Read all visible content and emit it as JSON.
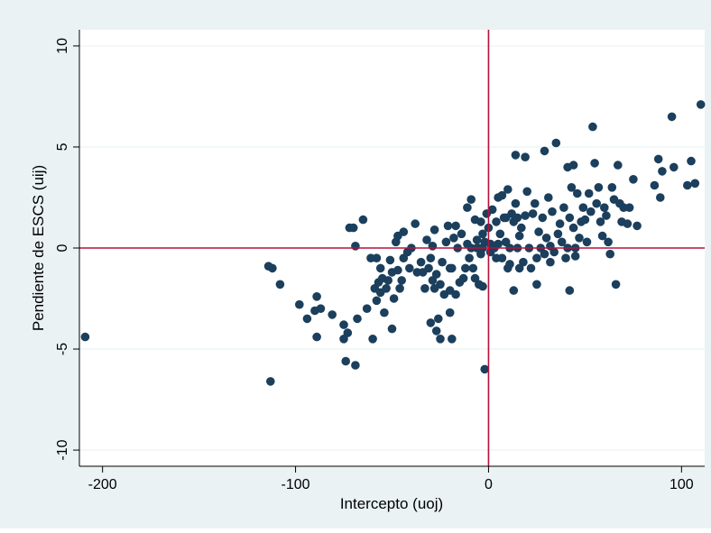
{
  "chart_data": {
    "type": "scatter",
    "title": "",
    "xlabel": "Intercepto (uoj)",
    "ylabel": "Pendiente de ESCS (uij)",
    "xlim": [
      -212,
      112
    ],
    "ylim": [
      -10.8,
      10.8
    ],
    "x_ticks": [
      -200,
      -100,
      0,
      100
    ],
    "y_ticks": [
      -10,
      -5,
      0,
      5,
      10
    ],
    "x_tick_labels": [
      "-200",
      "-100",
      "0",
      "100"
    ],
    "y_tick_labels": [
      "-10",
      "-5",
      "0",
      "5",
      "10"
    ],
    "grid": true,
    "reference_lines": {
      "x": 0,
      "y": 0
    },
    "colors": {
      "background": "#eaf2f3",
      "plot_area": "#ffffff",
      "points": "#1b3f5c",
      "reference_lines": "#b5123b",
      "grid": "#eaf2f3"
    },
    "points": [
      [
        -209,
        -4.4
      ],
      [
        -114,
        -0.9
      ],
      [
        -112,
        -1.0
      ],
      [
        -113,
        -6.6
      ],
      [
        -108,
        -1.8
      ],
      [
        -98,
        -2.8
      ],
      [
        -94,
        -3.5
      ],
      [
        -90,
        -3.1
      ],
      [
        -89,
        -2.4
      ],
      [
        -89,
        -4.4
      ],
      [
        -87,
        -3.0
      ],
      [
        -81,
        -3.3
      ],
      [
        -75,
        -4.5
      ],
      [
        -75,
        -3.8
      ],
      [
        -74,
        -5.6
      ],
      [
        -73,
        -4.2
      ],
      [
        -72,
        1.0
      ],
      [
        -70,
        1.0
      ],
      [
        -69,
        -5.8
      ],
      [
        -69,
        0.1
      ],
      [
        -68,
        -3.5
      ],
      [
        -65,
        1.4
      ],
      [
        -63,
        -3.0
      ],
      [
        -61,
        -0.5
      ],
      [
        -60,
        -4.5
      ],
      [
        -59,
        -2.0
      ],
      [
        -58,
        -0.5
      ],
      [
        -58,
        -2.6
      ],
      [
        -57,
        -1.7
      ],
      [
        -56,
        -2.2
      ],
      [
        -56,
        -1.0
      ],
      [
        -55,
        -1.5
      ],
      [
        -54,
        -3.2
      ],
      [
        -53,
        -2.0
      ],
      [
        -52,
        -1.6
      ],
      [
        -51,
        -0.6
      ],
      [
        -50,
        -1.2
      ],
      [
        -50,
        -4.0
      ],
      [
        -49,
        -2.5
      ],
      [
        -48,
        0.3
      ],
      [
        -47,
        -1.1
      ],
      [
        -47,
        0.6
      ],
      [
        -46,
        -2.0
      ],
      [
        -45,
        -1.6
      ],
      [
        -44,
        0.8
      ],
      [
        -44,
        -0.5
      ],
      [
        -42,
        -0.2
      ],
      [
        -41,
        -1.0
      ],
      [
        -40,
        0.0
      ],
      [
        -38,
        1.2
      ],
      [
        -37,
        -1.2
      ],
      [
        -35,
        -0.7
      ],
      [
        -34,
        -1.2
      ],
      [
        -33,
        -2.0
      ],
      [
        -32,
        0.4
      ],
      [
        -31,
        -1.0
      ],
      [
        -30,
        -3.7
      ],
      [
        -30,
        -0.5
      ],
      [
        -29,
        -1.6
      ],
      [
        -29,
        0.1
      ],
      [
        -28,
        -2.0
      ],
      [
        -28,
        0.9
      ],
      [
        -27,
        -4.1
      ],
      [
        -27,
        -1.3
      ],
      [
        -26,
        -3.5
      ],
      [
        -25,
        -1.8
      ],
      [
        -25,
        -4.5
      ],
      [
        -24,
        -0.7
      ],
      [
        -23,
        -2.3
      ],
      [
        -22,
        0.3
      ],
      [
        -21,
        1.1
      ],
      [
        -20,
        -1.0
      ],
      [
        -20,
        -3.2
      ],
      [
        -20,
        -2.1
      ],
      [
        -19,
        -4.5
      ],
      [
        -19,
        -1.0
      ],
      [
        -18,
        0.5
      ],
      [
        -17,
        1.1
      ],
      [
        -17,
        -2.3
      ],
      [
        -16,
        0.0
      ],
      [
        -15,
        -1.7
      ],
      [
        -14,
        0.7
      ],
      [
        -13,
        -1.5
      ],
      [
        -12,
        -1.0
      ],
      [
        -11,
        0.2
      ],
      [
        -11,
        2.0
      ],
      [
        -10,
        -0.5
      ],
      [
        -9,
        2.4
      ],
      [
        -9,
        0.0
      ],
      [
        -8,
        -1.0
      ],
      [
        -7,
        -1.5
      ],
      [
        -7,
        1.4
      ],
      [
        -6,
        0.0
      ],
      [
        -6,
        0.4
      ],
      [
        -5,
        0.0
      ],
      [
        -5,
        -1.8
      ],
      [
        -4,
        1.3
      ],
      [
        -4,
        -0.3
      ],
      [
        -3,
        0.0
      ],
      [
        -3,
        0.7
      ],
      [
        -3,
        -1.9
      ],
      [
        -2,
        -6.0
      ],
      [
        -2,
        0.3
      ],
      [
        -1,
        1.7
      ],
      [
        0,
        1.0
      ],
      [
        1,
        -0.2
      ],
      [
        1,
        0.2
      ],
      [
        2,
        1.9
      ],
      [
        3,
        0.0
      ],
      [
        4,
        -0.5
      ],
      [
        4,
        1.3
      ],
      [
        5,
        0.2
      ],
      [
        5,
        2.5
      ],
      [
        6,
        0.7
      ],
      [
        7,
        -0.5
      ],
      [
        7,
        2.6
      ],
      [
        8,
        1.5
      ],
      [
        9,
        0.3
      ],
      [
        9,
        1.5
      ],
      [
        10,
        -1.0
      ],
      [
        10,
        2.9
      ],
      [
        11,
        -0.8
      ],
      [
        11,
        0.0
      ],
      [
        12,
        1.7
      ],
      [
        13,
        1.3
      ],
      [
        13,
        -2.1
      ],
      [
        14,
        4.6
      ],
      [
        14,
        2.2
      ],
      [
        15,
        0.0
      ],
      [
        15,
        1.5
      ],
      [
        16,
        -1.0
      ],
      [
        16,
        0.6
      ],
      [
        17,
        1.0
      ],
      [
        18,
        -0.7
      ],
      [
        19,
        1.6
      ],
      [
        19,
        4.5
      ],
      [
        20,
        2.8
      ],
      [
        21,
        0.0
      ],
      [
        22,
        -1.0
      ],
      [
        23,
        1.7
      ],
      [
        24,
        2.2
      ],
      [
        25,
        -0.5
      ],
      [
        25,
        -1.8
      ],
      [
        26,
        0.8
      ],
      [
        27,
        0.0
      ],
      [
        28,
        1.5
      ],
      [
        29,
        -0.3
      ],
      [
        29,
        4.8
      ],
      [
        30,
        0.5
      ],
      [
        31,
        2.5
      ],
      [
        32,
        -0.7
      ],
      [
        32,
        0.1
      ],
      [
        33,
        1.8
      ],
      [
        34,
        -0.2
      ],
      [
        35,
        5.2
      ],
      [
        36,
        0.7
      ],
      [
        37,
        1.2
      ],
      [
        38,
        0.3
      ],
      [
        39,
        2.0
      ],
      [
        40,
        -0.5
      ],
      [
        41,
        4.0
      ],
      [
        41,
        0.0
      ],
      [
        42,
        -2.1
      ],
      [
        42,
        1.5
      ],
      [
        43,
        3.0
      ],
      [
        44,
        1.0
      ],
      [
        44,
        4.1
      ],
      [
        45,
        0.0
      ],
      [
        45,
        -0.4
      ],
      [
        46,
        2.7
      ],
      [
        47,
        0.5
      ],
      [
        48,
        1.3
      ],
      [
        49,
        2.0
      ],
      [
        50,
        1.4
      ],
      [
        51,
        0.3
      ],
      [
        52,
        2.7
      ],
      [
        53,
        1.8
      ],
      [
        54,
        6.0
      ],
      [
        55,
        4.2
      ],
      [
        56,
        2.2
      ],
      [
        57,
        3.0
      ],
      [
        58,
        1.3
      ],
      [
        59,
        0.6
      ],
      [
        60,
        2.0
      ],
      [
        61,
        1.6
      ],
      [
        62,
        0.3
      ],
      [
        63,
        -0.3
      ],
      [
        64,
        3.0
      ],
      [
        65,
        2.4
      ],
      [
        66,
        -1.8
      ],
      [
        67,
        4.1
      ],
      [
        68,
        2.2
      ],
      [
        69,
        1.3
      ],
      [
        70,
        2.0
      ],
      [
        72,
        1.2
      ],
      [
        73,
        2.0
      ],
      [
        75,
        3.4
      ],
      [
        77,
        1.1
      ],
      [
        86,
        3.1
      ],
      [
        88,
        4.4
      ],
      [
        89,
        2.5
      ],
      [
        90,
        3.8
      ],
      [
        95,
        6.5
      ],
      [
        96,
        4.0
      ],
      [
        103,
        3.1
      ],
      [
        105,
        4.3
      ],
      [
        107,
        3.2
      ],
      [
        110,
        7.1
      ]
    ]
  }
}
